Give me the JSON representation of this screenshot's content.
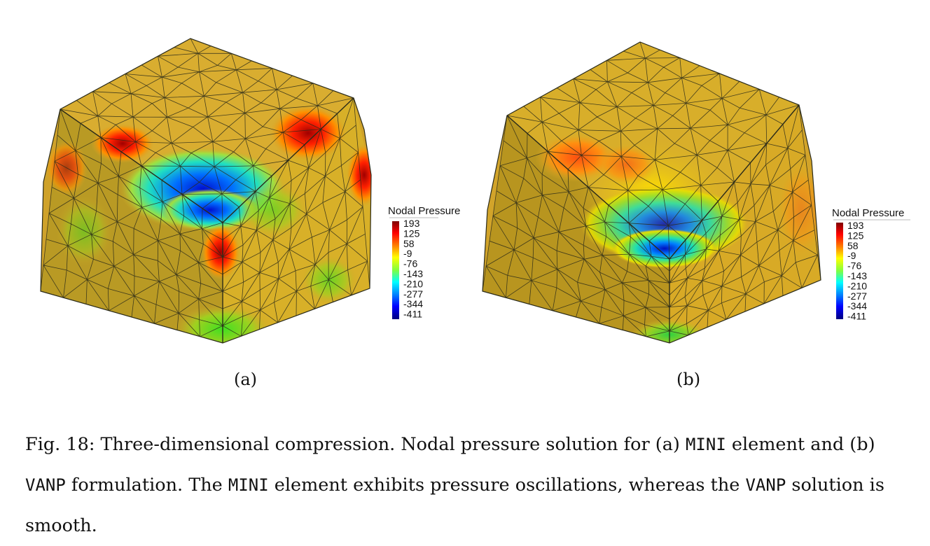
{
  "colors": {
    "scale": [
      "#00007f",
      "#0000ff",
      "#0080ff",
      "#00ffff",
      "#80ff80",
      "#ffff00",
      "#ff8000",
      "#ff0000",
      "#7f0000"
    ],
    "base": "#d4a62a",
    "mesh": "#2b2b1a"
  },
  "panels": [
    {
      "sublabel": "(a)",
      "legend": {
        "title": "Nodal Pressure",
        "ticks": [
          "193",
          "125",
          "58",
          "-9",
          "-76",
          "-143",
          "-210",
          "-277",
          "-344",
          "-411"
        ]
      },
      "figure": "mini"
    },
    {
      "sublabel": "(b)",
      "legend": {
        "title": "Nodal Pressure",
        "ticks": [
          "193",
          "125",
          "58",
          "-9",
          "-76",
          "-143",
          "-210",
          "-277",
          "-344",
          "-411"
        ]
      },
      "figure": "vanp"
    }
  ],
  "caption": {
    "p1": "Fig. 18: Three-dimensional compression. Nodal pressure solution for (a) ",
    "c1": "MINI",
    "p2": " element and (b) ",
    "c2": "VANP",
    "p3": " formulation. The ",
    "c3": "MINI",
    "p4": " element exhibits pressure oscillations, whereas the ",
    "c4": "VANP",
    "p5": " solution is smooth."
  }
}
